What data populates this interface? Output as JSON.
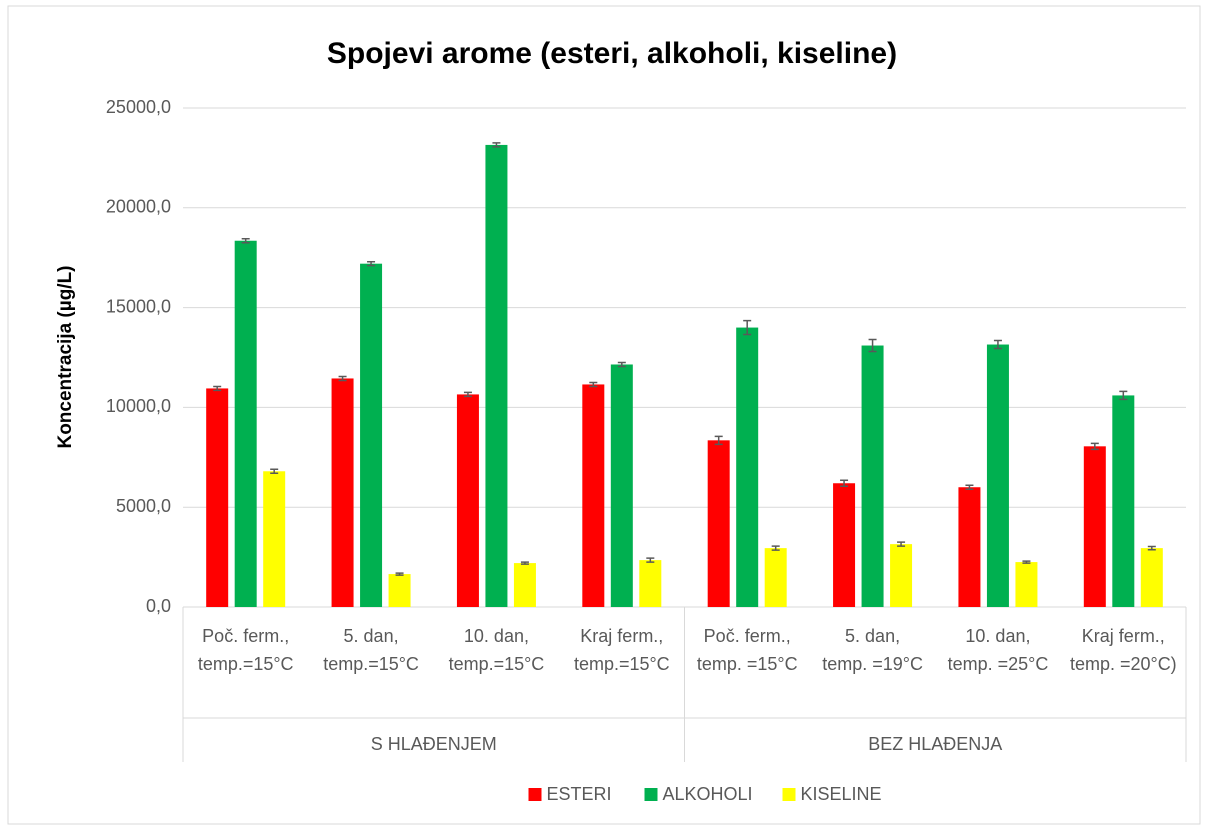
{
  "chart_data": {
    "type": "bar",
    "title": "Spojevi arome (esteri, alkoholi, kiseline)",
    "y_label": "Koncentracija (µg/L)",
    "groups": [
      {
        "label": "S HLAĐENJEM",
        "categories": [
          "Poč. ferm., temp.=15°C",
          "5. dan, temp.=15°C",
          "10. dan, temp.=15°C",
          "Kraj ferm., temp.=15°C"
        ]
      },
      {
        "label": "BEZ HLAĐENJA",
        "categories": [
          "Poč. ferm., temp. =15°C",
          "5. dan, temp. =19°C",
          "10. dan, temp. =25°C",
          "Kraj ferm., temp. =20°C)"
        ]
      }
    ],
    "series": [
      {
        "name": "ESTERI",
        "color": "#ff0000",
        "values": [
          10950,
          11450,
          10650,
          11150,
          8350,
          6200,
          6000,
          8050
        ],
        "errors": [
          100,
          100,
          100,
          100,
          200,
          150,
          100,
          150
        ]
      },
      {
        "name": "ALKOHOLI",
        "color": "#00b050",
        "values": [
          18350,
          17200,
          23150,
          12150,
          14000,
          13100,
          13150,
          10600
        ],
        "errors": [
          100,
          100,
          100,
          100,
          350,
          300,
          200,
          200
        ]
      },
      {
        "name": "KISELINE",
        "color": "#ffff00",
        "values": [
          6800,
          1650,
          2200,
          2350,
          2950,
          3150,
          2250,
          2950
        ],
        "errors": [
          100,
          50,
          50,
          100,
          100,
          100,
          50,
          80
        ]
      }
    ],
    "ylim": [
      0,
      25000
    ],
    "yticks": [
      {
        "value": 0,
        "label": "0,0"
      },
      {
        "value": 5000,
        "label": "5000,0"
      },
      {
        "value": 10000,
        "label": "10000,0"
      },
      {
        "value": 15000,
        "label": "15000,0"
      },
      {
        "value": 20000,
        "label": "20000,0"
      },
      {
        "value": 25000,
        "label": "25000,0"
      }
    ],
    "grid": true,
    "legend": "bottom"
  }
}
